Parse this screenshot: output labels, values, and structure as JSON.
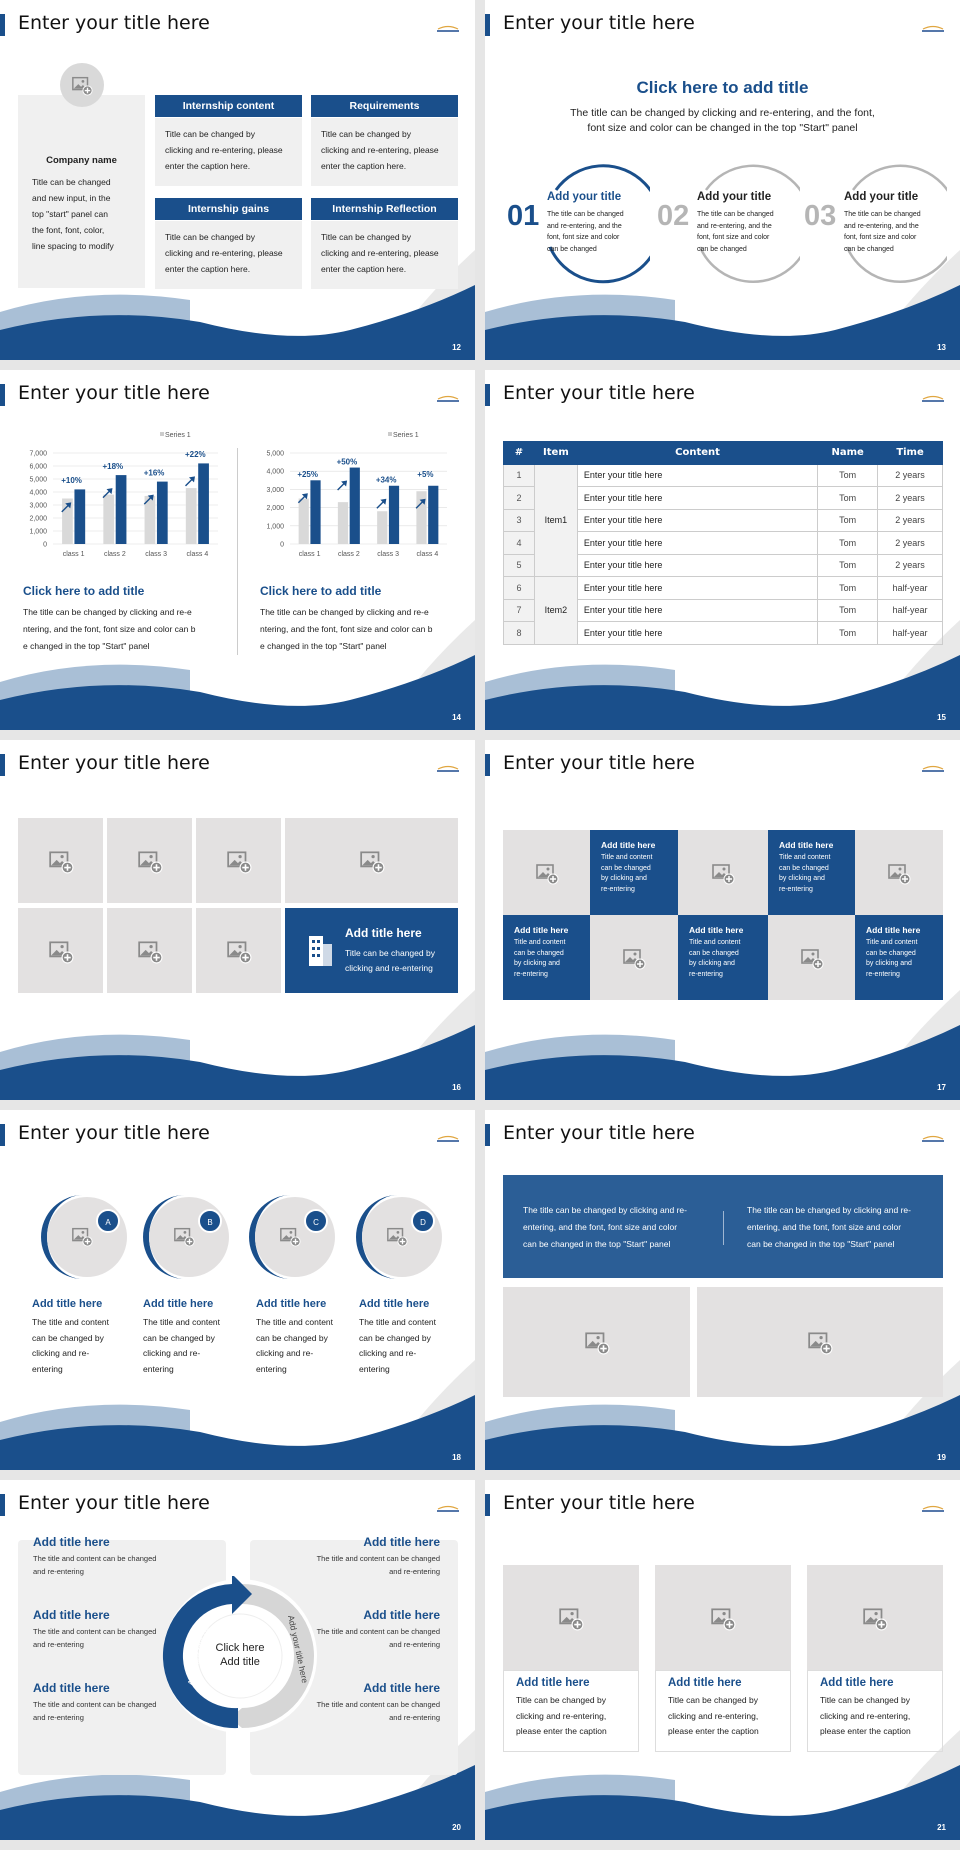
{
  "colors": {
    "primary": "#1a4f8b",
    "light_blue": "#a9bfd6",
    "gray": "#e3e1e1",
    "inactive": "#b5b5b5"
  },
  "slide_title": "Enter your title here",
  "s12": {
    "number": "12",
    "company_name": "Company name",
    "company_text": [
      "Title can be changed",
      "and new input, in the",
      "top \"start\" panel can",
      "the font, font, color,",
      "line spacing to modify"
    ],
    "boxes": [
      {
        "header": "Internship content",
        "text": [
          "Title can be changed by",
          "clicking and re-entering, please",
          "enter the caption here."
        ]
      },
      {
        "header": "Requirements",
        "text": [
          "Title can be changed by",
          "clicking and re-entering, please",
          "enter the caption here."
        ]
      },
      {
        "header": "Internship gains",
        "text": [
          "Title can be changed by",
          "clicking and re-entering, please",
          "enter the caption here."
        ]
      },
      {
        "header": "Internship Reflection",
        "text": [
          "Title can be changed by",
          "clicking and re-entering, please",
          "enter the caption here."
        ]
      }
    ]
  },
  "s13": {
    "number": "13",
    "heading": "Click here to add title",
    "subtitle": [
      "The title can be changed by clicking and re-entering, and the font,",
      "font size and color can be changed in the top \"Start\" panel"
    ],
    "items": [
      {
        "num": "01",
        "title": "Add your title",
        "text": [
          "The title can be changed",
          "and re-entering, and the",
          "font, font size and color",
          "can be changed"
        ],
        "active": true
      },
      {
        "num": "02",
        "title": "Add your title",
        "text": [
          "The title can be changed",
          "and re-entering, and the",
          "font, font size and color",
          "can be changed"
        ],
        "active": false
      },
      {
        "num": "03",
        "title": "Add your title",
        "text": [
          "The title can be changed",
          "and re-entering, and the",
          "font, font size and color",
          "can be changed"
        ],
        "active": false
      }
    ]
  },
  "s14": {
    "number": "14",
    "panels": [
      {
        "heading": "Click here to add title",
        "text": [
          "The title can be changed by clicking and re-e",
          "ntering, and the font, font size and color can b",
          "e changed in the top \"Start\" panel"
        ]
      },
      {
        "heading": "Click here to add title",
        "text": [
          "The title can be changed by clicking and re-e",
          "ntering, and the font, font size and color can b",
          "e changed in the top \"Start\" panel"
        ]
      }
    ]
  },
  "chart_data": [
    {
      "type": "bar",
      "categories": [
        "class 1",
        "class 2",
        "class 3",
        "class 4"
      ],
      "legend": "Series 1",
      "legend_position": "top-right",
      "ylim": [
        0,
        7000
      ],
      "yticks": [
        "0",
        "1,000",
        "2,000",
        "3,000",
        "4,000",
        "5,000",
        "6,000",
        "7,000"
      ],
      "grid": true,
      "series": [
        {
          "name": "Series 1",
          "values": [
            3500,
            3800,
            3700,
            4300
          ],
          "color": "#d9d9d9"
        },
        {
          "values": [
            4200,
            5300,
            4800,
            6200
          ],
          "color": "#1a4f8b"
        }
      ],
      "annotations": [
        "+10%",
        "+18%",
        "+16%",
        "+22%"
      ]
    },
    {
      "type": "bar",
      "categories": [
        "class 1",
        "class 2",
        "class 3",
        "class 4"
      ],
      "legend": "Series 1",
      "legend_position": "top-right",
      "ylim": [
        0,
        5000
      ],
      "yticks": [
        "0",
        "1,000",
        "2,000",
        "3,000",
        "4,000",
        "5,000"
      ],
      "grid": true,
      "series": [
        {
          "name": "Series 1",
          "values": [
            2500,
            2300,
            1800,
            2900
          ],
          "color": "#d9d9d9"
        },
        {
          "values": [
            3500,
            4200,
            3200,
            3200
          ],
          "color": "#1a4f8b"
        }
      ],
      "annotations": [
        "+25%",
        "+50%",
        "+34%",
        "+5%"
      ]
    }
  ],
  "s15": {
    "number": "15",
    "headers": [
      "#",
      "Item",
      "Content",
      "Name",
      "Time"
    ],
    "rows": [
      [
        "1",
        "Enter your title here",
        "Tom",
        "2 years"
      ],
      [
        "2",
        "Enter your title here",
        "Tom",
        "2 years"
      ],
      [
        "3",
        "Enter your title here",
        "Tom",
        "2 years"
      ],
      [
        "4",
        "Enter your title here",
        "Tom",
        "2 years"
      ],
      [
        "5",
        "Enter your title here",
        "Tom",
        "2 years"
      ],
      [
        "6",
        "Enter your title here",
        "Tom",
        "half-year"
      ],
      [
        "7",
        "Enter your title here",
        "Tom",
        "half-year"
      ],
      [
        "8",
        "Enter your title here",
        "Tom",
        "half-year"
      ]
    ],
    "groups": [
      "Item1",
      "Item2"
    ]
  },
  "s16": {
    "number": "16",
    "feature_title": "Add title here",
    "feature_text": [
      "Title can be changed by",
      "clicking and re-entering"
    ]
  },
  "s17": {
    "number": "17",
    "cells": [
      {
        "title": "Add title here",
        "text": [
          "Title and content",
          "can be changed",
          "by clicking and",
          "re-entering"
        ]
      },
      {
        "title": "Add title here",
        "text": [
          "Title and content",
          "can be changed",
          "by clicking and",
          "re-entering"
        ]
      },
      {
        "title": "Add title here",
        "text": [
          "Title and content",
          "can be changed",
          "by clicking and",
          "re-entering"
        ]
      },
      {
        "title": "Add title here",
        "text": [
          "Title and content",
          "can be changed",
          "by clicking and",
          "re-entering"
        ]
      },
      {
        "title": "Add title here",
        "text": [
          "Title and content",
          "can be changed",
          "by clicking and",
          "re-entering"
        ]
      }
    ]
  },
  "s18": {
    "number": "18",
    "items": [
      {
        "badge": "A",
        "title": "Add title here",
        "text": [
          "The title and content",
          "can be changed by",
          "clicking and re-",
          "entering"
        ]
      },
      {
        "badge": "B",
        "title": "Add title here",
        "text": [
          "The title and content",
          "can be changed by",
          "clicking and re-",
          "entering"
        ]
      },
      {
        "badge": "C",
        "title": "Add title here",
        "text": [
          "The title and content",
          "can be changed by",
          "clicking and re-",
          "entering"
        ]
      },
      {
        "badge": "D",
        "title": "Add title here",
        "text": [
          "The title and content",
          "can be changed by",
          "clicking and re-",
          "entering"
        ]
      }
    ]
  },
  "s19": {
    "number": "19",
    "texts": [
      [
        "The title can be changed by clicking and re-",
        "entering, and the font, font size and color",
        "can be changed in the top \"Start\" panel"
      ],
      [
        "The title can be changed by clicking and re-",
        "entering, and the font, font size and color",
        "can be changed in the top \"Start\" panel"
      ]
    ]
  },
  "s20": {
    "number": "20",
    "center": [
      "Click here",
      "Add title"
    ],
    "arc_left": "Add your title here",
    "arc_right": "Add your title here",
    "items": [
      {
        "title": "Add title here",
        "text": [
          "The title and content can be changed",
          "and re-entering"
        ]
      },
      {
        "title": "Add title here",
        "text": [
          "The title and content can be changed",
          "and re-entering"
        ]
      },
      {
        "title": "Add title here",
        "text": [
          "The title and content can be changed",
          "and re-entering"
        ]
      },
      {
        "title": "Add title here",
        "text": [
          "The title and content can be changed",
          "and re-entering"
        ]
      },
      {
        "title": "Add title here",
        "text": [
          "The title and content can be changed",
          "and re-entering"
        ]
      },
      {
        "title": "Add title here",
        "text": [
          "The title and content can be changed",
          "and re-entering"
        ]
      }
    ]
  },
  "s21": {
    "number": "21",
    "cards": [
      {
        "title": "Add title here",
        "text": [
          "Title can be changed by",
          "clicking and re-entering,",
          "please enter the caption"
        ]
      },
      {
        "title": "Add title here",
        "text": [
          "Title can be changed by",
          "clicking and re-entering,",
          "please enter the caption"
        ]
      },
      {
        "title": "Add title here",
        "text": [
          "Title can be changed by",
          "clicking and re-entering,",
          "please enter the caption"
        ]
      }
    ]
  }
}
